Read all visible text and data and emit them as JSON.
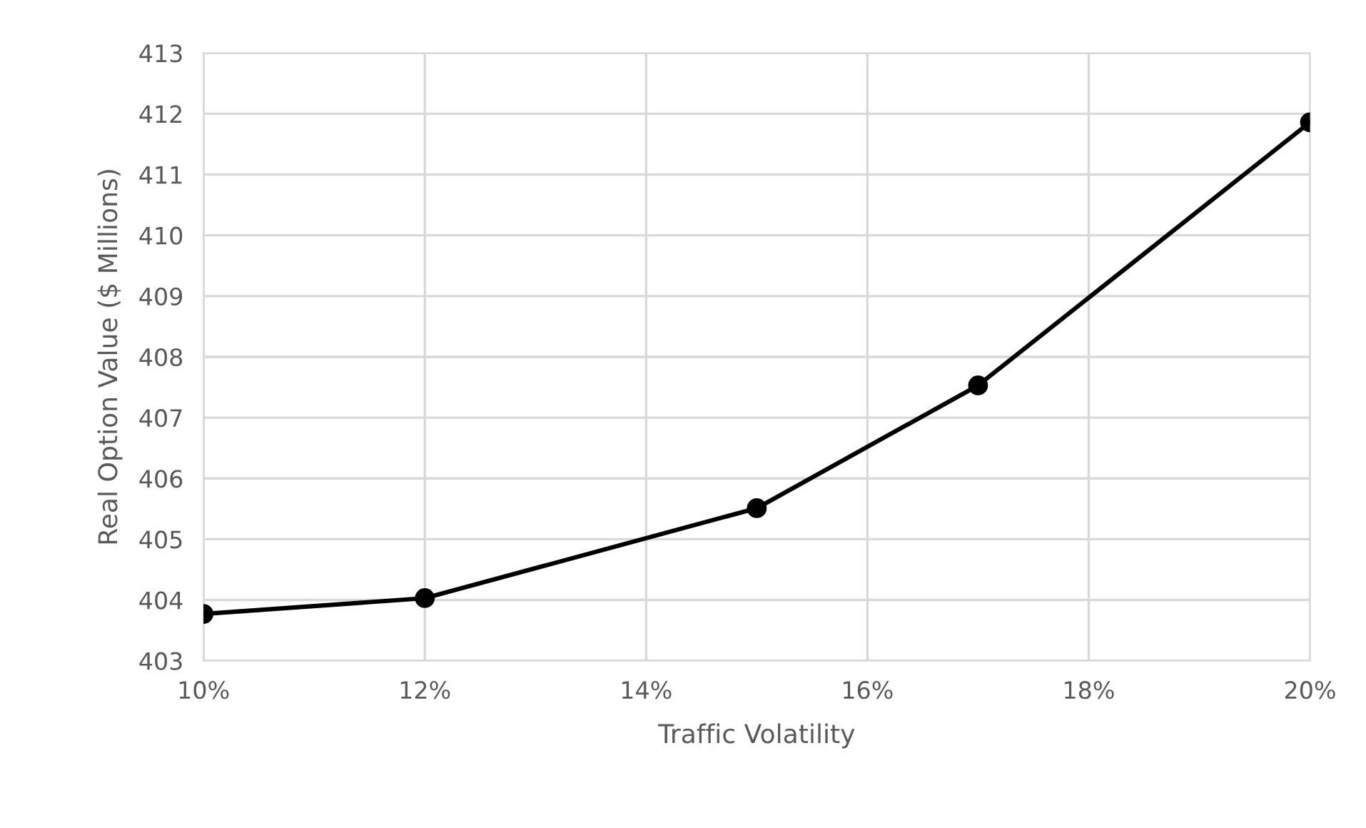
{
  "chart_data": {
    "type": "line",
    "xlabel": "Traffic Volatility",
    "ylabel": "Real Option Value ($ Millions)",
    "x": [
      10,
      12,
      15,
      17,
      20
    ],
    "series": [
      {
        "color": "#000000",
        "values": [
          403.77,
          404.03,
          405.51,
          407.53,
          411.86
        ]
      }
    ],
    "xlim": [
      10,
      20
    ],
    "xticks": [
      {
        "value": 10,
        "label": "10%"
      },
      {
        "value": 12,
        "label": "12%"
      },
      {
        "value": 14,
        "label": "14%"
      },
      {
        "value": 16,
        "label": "16%"
      },
      {
        "value": 18,
        "label": "18%"
      },
      {
        "value": 20,
        "label": "20%"
      }
    ],
    "ylim": [
      403,
      413
    ],
    "yticks": [
      403,
      404,
      405,
      406,
      407,
      408,
      409,
      410,
      411,
      412,
      413
    ],
    "grid": true,
    "marker": "circle",
    "line_style": "solid"
  }
}
